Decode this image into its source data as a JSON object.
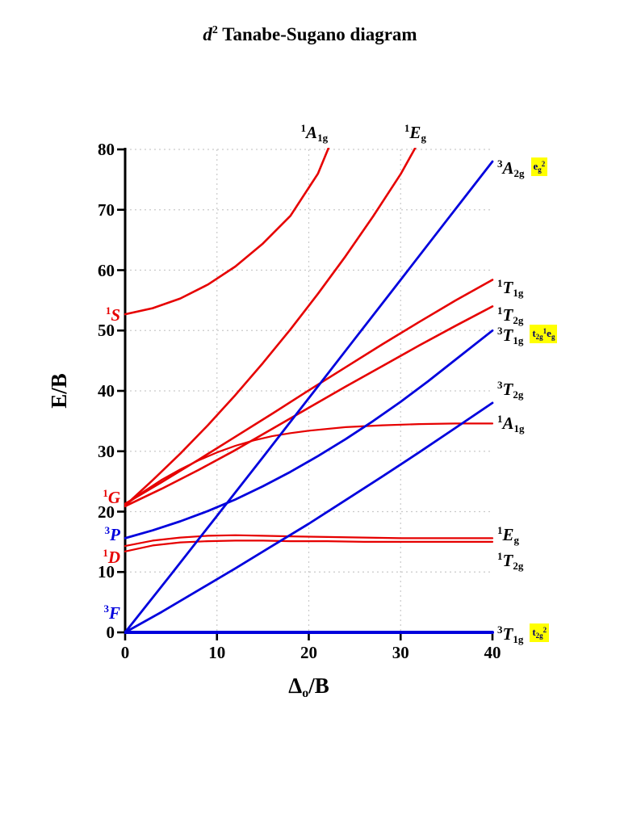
{
  "page": {
    "title": {
      "italic": "d",
      "sup": "2",
      "rest": " Tanabe-Sugano diagram",
      "text": "d2 Tanabe-Sugano diagram"
    }
  },
  "chart_data": {
    "type": "line",
    "title": "d2 Tanabe-Sugano diagram",
    "xlabel": "Δo/B",
    "xlabel_rich": {
      "base": "Δ",
      "sub": "o",
      "rest": "/B"
    },
    "ylabel": "E/B",
    "xlim": [
      0,
      40
    ],
    "ylim": [
      0,
      80
    ],
    "xticks": [
      0,
      10,
      20,
      30,
      40
    ],
    "yticks": [
      0,
      10,
      20,
      30,
      40,
      50,
      60,
      70,
      80
    ],
    "grid": "dashed",
    "legend": "none",
    "colors": {
      "singlet": "#e60000",
      "triplet": "#0000dd",
      "axis": "#000000",
      "grid": "#c9c9c9",
      "highlight": "#ffff00"
    },
    "series": [
      {
        "name": "1A1g-S",
        "term": "1A1g (from 1S)",
        "color": "singlet",
        "width": 2.6,
        "points": [
          [
            0,
            52.7
          ],
          [
            3,
            53.7
          ],
          [
            6,
            55.3
          ],
          [
            9,
            57.6
          ],
          [
            12,
            60.6
          ],
          [
            15,
            64.4
          ],
          [
            18,
            69.0
          ],
          [
            21,
            76.0
          ],
          [
            22.3,
            80.8
          ]
        ]
      },
      {
        "name": "1Eg-upper",
        "term": "1Eg (from 1G)",
        "color": "singlet",
        "width": 2.6,
        "points": [
          [
            0,
            21.0
          ],
          [
            3,
            25.2
          ],
          [
            6,
            29.6
          ],
          [
            9,
            34.3
          ],
          [
            12,
            39.3
          ],
          [
            15,
            44.6
          ],
          [
            18,
            50.2
          ],
          [
            21,
            56.1
          ],
          [
            24,
            62.3
          ],
          [
            27,
            68.9
          ],
          [
            30,
            75.9
          ],
          [
            31.8,
            80.8
          ]
        ]
      },
      {
        "name": "1T1g",
        "term": "1T1g (from 1G)",
        "color": "singlet",
        "width": 2.6,
        "points": [
          [
            0,
            21.3
          ],
          [
            4,
            24.9
          ],
          [
            8,
            28.6
          ],
          [
            12,
            32.4
          ],
          [
            16,
            36.2
          ],
          [
            20,
            40.1
          ],
          [
            24,
            43.9
          ],
          [
            28,
            47.7
          ],
          [
            32,
            51.4
          ],
          [
            36,
            55.0
          ],
          [
            40,
            58.4
          ]
        ]
      },
      {
        "name": "1T2g-upper",
        "term": "1T2g (from 1G)",
        "color": "singlet",
        "width": 2.6,
        "points": [
          [
            0,
            20.9
          ],
          [
            4,
            23.8
          ],
          [
            8,
            26.9
          ],
          [
            12,
            30.2
          ],
          [
            16,
            33.7
          ],
          [
            20,
            37.2
          ],
          [
            24,
            40.7
          ],
          [
            28,
            44.1
          ],
          [
            32,
            47.5
          ],
          [
            36,
            50.8
          ],
          [
            40,
            54.0
          ]
        ]
      },
      {
        "name": "1A1g-lower",
        "term": "1A1g (from 1G)",
        "color": "singlet",
        "width": 2.2,
        "points": [
          [
            0,
            21.1
          ],
          [
            2,
            23.3
          ],
          [
            4,
            25.3
          ],
          [
            6,
            27.0
          ],
          [
            8,
            28.5
          ],
          [
            10,
            29.8
          ],
          [
            12,
            30.9
          ],
          [
            14,
            31.8
          ],
          [
            16,
            32.5
          ],
          [
            18,
            33.0
          ],
          [
            20,
            33.4
          ],
          [
            24,
            34.0
          ],
          [
            28,
            34.3
          ],
          [
            32,
            34.5
          ],
          [
            36,
            34.6
          ],
          [
            40,
            34.6
          ]
        ]
      },
      {
        "name": "1Eg-lower",
        "term": "1Eg (from 1D)",
        "color": "singlet",
        "width": 2.2,
        "points": [
          [
            0,
            14.3
          ],
          [
            3,
            15.2
          ],
          [
            6,
            15.7
          ],
          [
            9,
            16.0
          ],
          [
            12,
            16.1
          ],
          [
            15,
            16.0
          ],
          [
            18,
            15.9
          ],
          [
            22,
            15.8
          ],
          [
            26,
            15.7
          ],
          [
            30,
            15.6
          ],
          [
            35,
            15.6
          ],
          [
            40,
            15.6
          ]
        ]
      },
      {
        "name": "1T2g-lower",
        "term": "1T2g (from 1D)",
        "color": "singlet",
        "width": 2.2,
        "points": [
          [
            0,
            13.4
          ],
          [
            3,
            14.4
          ],
          [
            6,
            14.9
          ],
          [
            9,
            15.1
          ],
          [
            12,
            15.2
          ],
          [
            15,
            15.2
          ],
          [
            18,
            15.1
          ],
          [
            22,
            15.1
          ],
          [
            26,
            15.0
          ],
          [
            30,
            15.0
          ],
          [
            35,
            15.0
          ],
          [
            40,
            15.0
          ]
        ]
      },
      {
        "name": "3A2g",
        "term": "3A2g (from 3F)",
        "color": "triplet",
        "width": 2.8,
        "points": [
          [
            0,
            0
          ],
          [
            5,
            9.6
          ],
          [
            10,
            19.3
          ],
          [
            15,
            29.0
          ],
          [
            20,
            38.8
          ],
          [
            25,
            48.6
          ],
          [
            30,
            58.4
          ],
          [
            35,
            68.2
          ],
          [
            40,
            78.0
          ]
        ]
      },
      {
        "name": "3T2g",
        "term": "3T2g (from 3F)",
        "color": "triplet",
        "width": 2.8,
        "points": [
          [
            0,
            0
          ],
          [
            4,
            3.4
          ],
          [
            8,
            7.0
          ],
          [
            12,
            10.6
          ],
          [
            16,
            14.3
          ],
          [
            20,
            18.0
          ],
          [
            24,
            21.9
          ],
          [
            28,
            25.8
          ],
          [
            32,
            29.8
          ],
          [
            36,
            33.9
          ],
          [
            40,
            38.0
          ]
        ]
      },
      {
        "name": "3T1g-P",
        "term": "3T1g (from 3P)",
        "color": "triplet",
        "width": 2.8,
        "points": [
          [
            0,
            15.6
          ],
          [
            3,
            16.9
          ],
          [
            6,
            18.4
          ],
          [
            9,
            20.1
          ],
          [
            12,
            22.0
          ],
          [
            15,
            24.2
          ],
          [
            18,
            26.6
          ],
          [
            21,
            29.2
          ],
          [
            24,
            32.0
          ],
          [
            27,
            35.0
          ],
          [
            30,
            38.2
          ],
          [
            33,
            41.6
          ],
          [
            36,
            45.2
          ],
          [
            40,
            50.0
          ]
        ]
      },
      {
        "name": "3T1g-ground",
        "term": "3T1g (ground, from 3F)",
        "color": "triplet",
        "width": 4,
        "points": [
          [
            0,
            0
          ],
          [
            40,
            0
          ]
        ]
      }
    ],
    "labels": {
      "left": [
        {
          "name": "1S",
          "sup": "1",
          "letter": "S",
          "color": "singlet",
          "y": 53.2
        },
        {
          "name": "1G",
          "sup": "1",
          "letter": "G",
          "color": "singlet",
          "y": 23.0
        },
        {
          "name": "3P",
          "sup": "3",
          "letter": "P",
          "color": "triplet",
          "y": 16.9
        },
        {
          "name": "1D",
          "sup": "1",
          "letter": "D",
          "color": "singlet",
          "y": 13.1
        },
        {
          "name": "3F",
          "sup": "3",
          "letter": "F",
          "color": "triplet",
          "y": 3.9
        }
      ],
      "right": [
        {
          "name": "3A2g",
          "sup": "3",
          "letter": "A",
          "sub": "2g",
          "y": 77.6,
          "config_text": "eg2",
          "badge": [
            {
              "b": "e",
              "sub": "g",
              "sup": "2"
            }
          ]
        },
        {
          "name": "1T1g",
          "sup": "1",
          "letter": "T",
          "sub": "1g",
          "y": 57.8
        },
        {
          "name": "1T2g",
          "sup": "1",
          "letter": "T",
          "sub": "2g",
          "y": 53.3
        },
        {
          "name": "3T1g",
          "sup": "3",
          "letter": "T",
          "sub": "1g",
          "y": 49.9,
          "config_text": "t2g1eg",
          "badge": [
            {
              "b": "t",
              "sub": "2g",
              "sup": "1"
            },
            {
              "b": "e",
              "sub": "g"
            }
          ]
        },
        {
          "name": "3T2g",
          "sup": "3",
          "letter": "T",
          "sub": "2g",
          "y": 41.0
        },
        {
          "name": "1A1g",
          "sup": "1",
          "letter": "A",
          "sub": "1g",
          "y": 35.3
        },
        {
          "name": "1Eg",
          "sup": "1",
          "letter": "E",
          "sub": "g",
          "y": 16.9
        },
        {
          "name": "1T2g-low",
          "sup": "1",
          "letter": "T",
          "sub": "2g",
          "y": 12.6
        },
        {
          "name": "3T1g-ground",
          "sup": "3",
          "letter": "T",
          "sub": "1g",
          "y": 0.4,
          "config_text": "t2g2",
          "badge": [
            {
              "b": "t",
              "sub": "2g",
              "sup": "2"
            }
          ]
        }
      ],
      "top": [
        {
          "name": "1A1g-top",
          "sup": "1",
          "letter": "A",
          "sub": "1g",
          "x": 20.6
        },
        {
          "name": "1Eg-top",
          "sup": "1",
          "letter": "E",
          "sub": "g",
          "x": 31.6
        }
      ]
    }
  }
}
